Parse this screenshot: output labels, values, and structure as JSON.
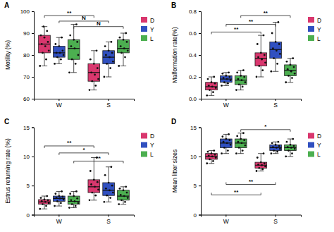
{
  "chart_data": [
    {
      "type": "box",
      "title": "A",
      "y_label": "Motility (%)",
      "categories": [
        "W",
        "S"
      ],
      "legend": "right",
      "ylim": [
        60,
        100
      ],
      "yticks": [
        60,
        70,
        80,
        90,
        100
      ],
      "series": [
        {
          "name": "D",
          "color": "#d9376e",
          "boxes": [
            {
              "min": 75,
              "q1": 81,
              "median": 85,
              "q3": 89,
              "max": 93,
              "points": [
                75,
                78,
                81,
                82,
                84,
                85,
                86,
                88,
                89,
                91,
                93
              ]
            },
            {
              "min": 64,
              "q1": 68,
              "median": 72,
              "q3": 76,
              "max": 82,
              "points": [
                64,
                66,
                68,
                69,
                71,
                72,
                74,
                76,
                78,
                82
              ]
            }
          ]
        },
        {
          "name": "Y",
          "color": "#3050c0",
          "boxes": [
            {
              "min": 76,
              "q1": 79,
              "median": 81,
              "q3": 84,
              "max": 88,
              "points": [
                76,
                78,
                79,
                80,
                81,
                81,
                82,
                84,
                85,
                88
              ]
            },
            {
              "min": 70,
              "q1": 76,
              "median": 79,
              "q3": 82,
              "max": 86,
              "points": [
                70,
                74,
                76,
                77,
                79,
                80,
                81,
                82,
                84,
                86
              ]
            }
          ]
        },
        {
          "name": "L",
          "color": "#4caf50",
          "boxes": [
            {
              "min": 72,
              "q1": 78,
              "median": 83,
              "q3": 87,
              "max": 94,
              "points": [
                72,
                76,
                78,
                80,
                83,
                84,
                86,
                87,
                89,
                94
              ]
            },
            {
              "min": 75,
              "q1": 81,
              "median": 83,
              "q3": 87,
              "max": 90,
              "points": [
                75,
                79,
                81,
                82,
                83,
                84,
                86,
                87,
                88,
                90
              ]
            }
          ]
        }
      ],
      "annotations": [
        {
          "text": "**",
          "from": [
            0,
            0
          ],
          "to": [
            1,
            0
          ],
          "y": 98
        },
        {
          "text": "N",
          "from": [
            0,
            1
          ],
          "to": [
            1,
            1
          ],
          "y": 95.5
        },
        {
          "text": "N",
          "from": [
            0,
            2
          ],
          "to": [
            1,
            2
          ],
          "y": 93
        }
      ]
    },
    {
      "type": "box",
      "title": "B",
      "y_label": "Malformation rate(%)",
      "categories": [
        "W",
        "S"
      ],
      "legend": "right",
      "ylim": [
        0,
        0.8
      ],
      "yticks": [
        {
          "value": 0,
          "label": "0.0"
        },
        {
          "value": 0.2,
          "label": "0.2"
        },
        {
          "value": 0.4,
          "label": "0.4"
        },
        {
          "value": 0.6,
          "label": "0.6"
        },
        {
          "value": 0.8,
          "label": "0.8"
        }
      ],
      "series": [
        {
          "name": "D",
          "color": "#d9376e",
          "boxes": [
            {
              "min": 0.03,
              "q1": 0.08,
              "median": 0.11,
              "q3": 0.15,
              "max": 0.2,
              "points": [
                0.03,
                0.06,
                0.08,
                0.1,
                0.11,
                0.12,
                0.14,
                0.15,
                0.18,
                0.2
              ]
            },
            {
              "min": 0.2,
              "q1": 0.3,
              "median": 0.37,
              "q3": 0.42,
              "max": 0.58,
              "points": [
                0.2,
                0.26,
                0.3,
                0.33,
                0.36,
                0.38,
                0.4,
                0.42,
                0.5,
                0.58
              ]
            }
          ]
        },
        {
          "name": "Y",
          "color": "#3050c0",
          "boxes": [
            {
              "min": 0.12,
              "q1": 0.15,
              "median": 0.18,
              "q3": 0.21,
              "max": 0.24,
              "points": [
                0.12,
                0.14,
                0.15,
                0.17,
                0.18,
                0.19,
                0.2,
                0.21,
                0.23,
                0.24
              ]
            },
            {
              "min": 0.25,
              "q1": 0.37,
              "median": 0.45,
              "q3": 0.52,
              "max": 0.7,
              "points": [
                0.25,
                0.32,
                0.37,
                0.41,
                0.44,
                0.46,
                0.5,
                0.52,
                0.6,
                0.7
              ]
            }
          ]
        },
        {
          "name": "L",
          "color": "#4caf50",
          "boxes": [
            {
              "min": 0.08,
              "q1": 0.13,
              "median": 0.17,
              "q3": 0.21,
              "max": 0.26,
              "points": [
                0.08,
                0.11,
                0.13,
                0.15,
                0.17,
                0.18,
                0.2,
                0.21,
                0.24,
                0.26
              ]
            },
            {
              "min": 0.15,
              "q1": 0.21,
              "median": 0.26,
              "q3": 0.31,
              "max": 0.37,
              "points": [
                0.15,
                0.19,
                0.21,
                0.23,
                0.25,
                0.27,
                0.29,
                0.31,
                0.34,
                0.37
              ]
            }
          ]
        }
      ],
      "annotations": [
        {
          "text": "**",
          "from": [
            0,
            2
          ],
          "to": [
            1,
            2
          ],
          "y": 0.76
        },
        {
          "text": "**",
          "from": [
            0,
            1
          ],
          "to": [
            1,
            1
          ],
          "y": 0.68
        },
        {
          "text": "**",
          "from": [
            0,
            0
          ],
          "to": [
            1,
            0
          ],
          "y": 0.61
        }
      ]
    },
    {
      "type": "box",
      "title": "C",
      "y_label": "Estrus returning rate (%)",
      "categories": [
        "W",
        "S"
      ],
      "legend": "right",
      "ylim": [
        0,
        15
      ],
      "yticks": [
        0,
        5,
        10,
        15
      ],
      "series": [
        {
          "name": "D",
          "color": "#d9376e",
          "boxes": [
            {
              "min": 1,
              "q1": 1.8,
              "median": 2.2,
              "q3": 2.6,
              "max": 3.2,
              "points": [
                1,
                1.5,
                1.8,
                2,
                2.2,
                2.3,
                2.5,
                2.6,
                2.9,
                3.2
              ]
            },
            {
              "min": 2.5,
              "q1": 3.8,
              "median": 4.8,
              "q3": 6,
              "max": 9.8,
              "points": [
                2.5,
                3.3,
                3.8,
                4.3,
                4.8,
                5.2,
                5.6,
                6,
                7.5,
                9.8
              ]
            }
          ]
        },
        {
          "name": "Y",
          "color": "#3050c0",
          "boxes": [
            {
              "min": 1.5,
              "q1": 2.3,
              "median": 2.8,
              "q3": 3.2,
              "max": 4,
              "points": [
                1.5,
                2,
                2.3,
                2.6,
                2.8,
                2.9,
                3.1,
                3.2,
                3.6,
                4
              ]
            },
            {
              "min": 2.2,
              "q1": 3.3,
              "median": 4.2,
              "q3": 5.5,
              "max": 8.2,
              "points": [
                2.2,
                2.9,
                3.3,
                3.8,
                4.2,
                4.5,
                5,
                5.5,
                6.8,
                8.2
              ]
            }
          ]
        },
        {
          "name": "L",
          "color": "#4caf50",
          "boxes": [
            {
              "min": 1.2,
              "q1": 1.8,
              "median": 2.3,
              "q3": 3.2,
              "max": 4,
              "points": [
                1.2,
                1.5,
                1.8,
                2,
                2.3,
                2.5,
                2.8,
                3.2,
                3.6,
                4
              ]
            },
            {
              "min": 1.8,
              "q1": 2.5,
              "median": 3.2,
              "q3": 4.2,
              "max": 4.8,
              "points": [
                1.8,
                2.2,
                2.5,
                2.9,
                3.2,
                3.4,
                3.8,
                4.2,
                4.5,
                4.8
              ]
            }
          ]
        }
      ],
      "annotations": [
        {
          "text": "**",
          "from": [
            0,
            0
          ],
          "to": [
            1,
            0
          ],
          "y": 11.8
        },
        {
          "text": "*",
          "from": [
            0,
            1
          ],
          "to": [
            1,
            1
          ],
          "y": 10.6
        },
        {
          "text": "**",
          "from": [
            0,
            2
          ],
          "to": [
            1,
            2
          ],
          "y": 9.2
        }
      ]
    },
    {
      "type": "box",
      "title": "D",
      "y_label": "Mean litter sizes",
      "categories": [
        "W",
        "S"
      ],
      "legend": "right",
      "ylim": [
        0,
        15
      ],
      "yticks": [
        0,
        5,
        10,
        15
      ],
      "series": [
        {
          "name": "D",
          "color": "#d9376e",
          "boxes": [
            {
              "min": 8.8,
              "q1": 9.5,
              "median": 10,
              "q3": 10.5,
              "max": 11,
              "points": [
                8.8,
                9.2,
                9.5,
                9.8,
                10,
                10.1,
                10.3,
                10.5,
                10.8,
                11
              ]
            },
            {
              "min": 7.5,
              "q1": 8,
              "median": 8.5,
              "q3": 9,
              "max": 10.5,
              "points": [
                7.5,
                7.8,
                8,
                8.3,
                8.5,
                8.6,
                8.8,
                9,
                9.8,
                10.5
              ]
            }
          ]
        },
        {
          "name": "Y",
          "color": "#3050c0",
          "boxes": [
            {
              "min": 10.5,
              "q1": 11.5,
              "median": 12.3,
              "q3": 13,
              "max": 13.8,
              "points": [
                10.5,
                11,
                11.5,
                12,
                12.3,
                12.5,
                12.8,
                13,
                13.4,
                13.8
              ]
            },
            {
              "min": 10.5,
              "q1": 11,
              "median": 11.5,
              "q3": 12,
              "max": 12.5,
              "points": [
                10.5,
                10.8,
                11,
                11.3,
                11.5,
                11.6,
                11.8,
                12,
                12.3,
                12.5
              ]
            }
          ]
        },
        {
          "name": "L",
          "color": "#4caf50",
          "boxes": [
            {
              "min": 10.5,
              "q1": 11.5,
              "median": 12.3,
              "q3": 13,
              "max": 14,
              "points": [
                10.5,
                11,
                11.5,
                11.9,
                12.3,
                12.5,
                12.8,
                13,
                13.5,
                14
              ]
            },
            {
              "min": 10,
              "q1": 11,
              "median": 11.5,
              "q3": 12,
              "max": 13,
              "points": [
                10,
                10.5,
                11,
                11.3,
                11.5,
                11.6,
                11.8,
                12,
                12.5,
                13
              ]
            }
          ]
        }
      ],
      "annotations": [
        {
          "text": "*",
          "from": [
            0,
            2
          ],
          "to": [
            1,
            2
          ],
          "y": 14.6
        },
        {
          "text": "**",
          "from": [
            0,
            1
          ],
          "to": [
            1,
            1
          ],
          "y": 5.2
        },
        {
          "text": "**",
          "from": [
            0,
            0
          ],
          "to": [
            1,
            0
          ],
          "y": 3.4
        }
      ]
    }
  ]
}
